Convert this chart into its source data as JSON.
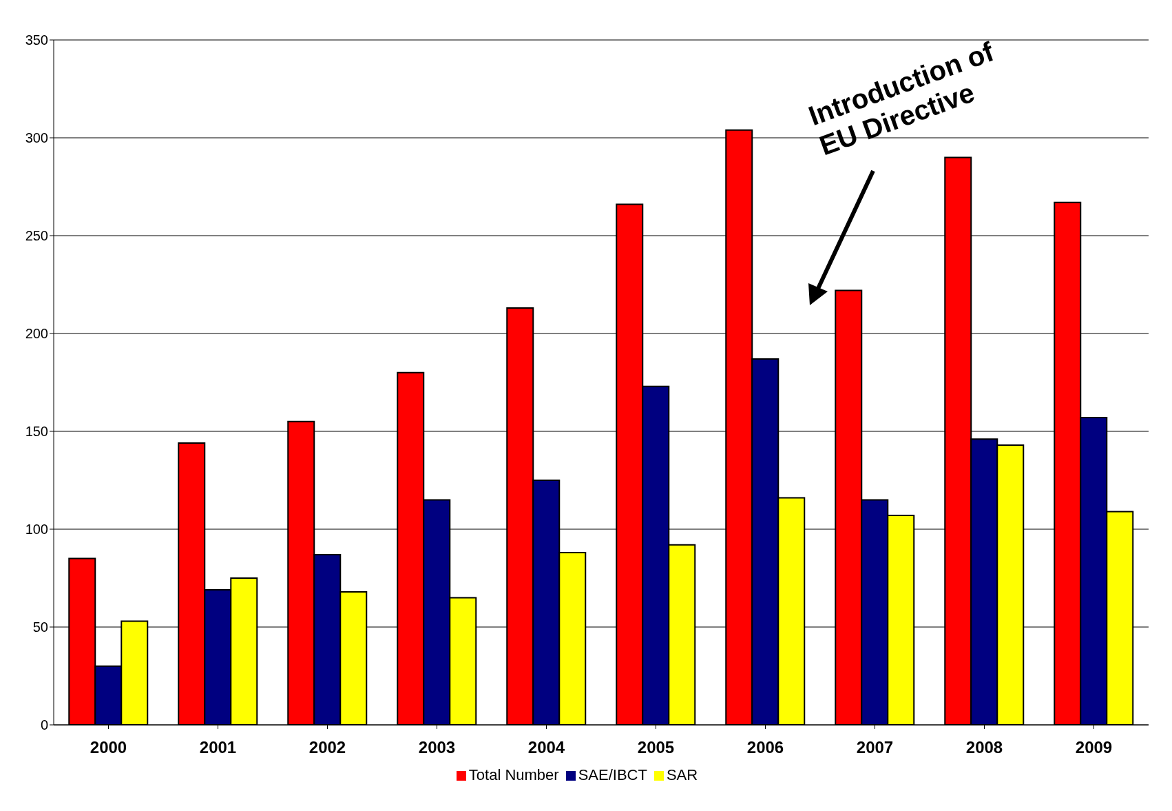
{
  "chart_data": {
    "type": "bar",
    "categories": [
      "2000",
      "2001",
      "2002",
      "2003",
      "2004",
      "2005",
      "2006",
      "2007",
      "2008",
      "2009"
    ],
    "series": [
      {
        "name": "Total Number",
        "color": "#ff0000",
        "values": [
          85,
          144,
          155,
          180,
          213,
          266,
          304,
          222,
          290,
          267
        ]
      },
      {
        "name": "SAE/IBCT",
        "color": "#000080",
        "values": [
          30,
          69,
          87,
          115,
          125,
          173,
          187,
          115,
          146,
          157
        ]
      },
      {
        "name": "SAR",
        "color": "#ffff00",
        "values": [
          53,
          75,
          68,
          65,
          88,
          92,
          116,
          107,
          143,
          109
        ]
      }
    ],
    "ylim": [
      0,
      350
    ],
    "yticks": [
      0,
      50,
      100,
      150,
      200,
      250,
      300,
      350
    ],
    "grid": "y",
    "legend": "bottom",
    "annotations": [
      "Introduction of EU Directive"
    ]
  }
}
